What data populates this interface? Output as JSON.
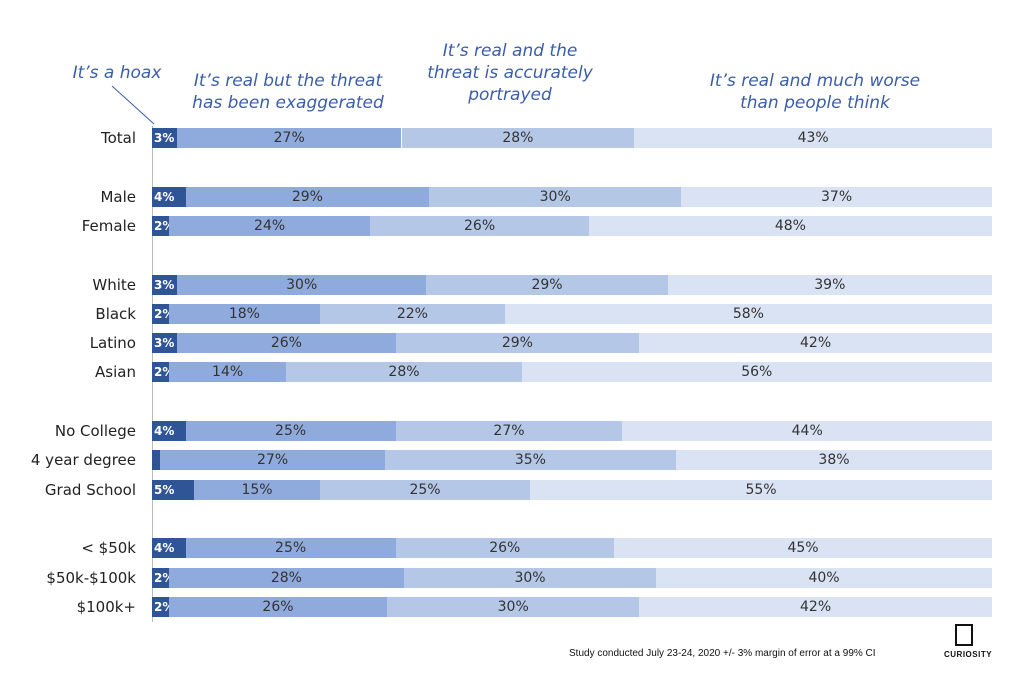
{
  "chart_data": {
    "type": "bar",
    "orientation": "horizontal",
    "stacked": true,
    "xlim": [
      0,
      100
    ],
    "series_names": [
      "It’s a hoax",
      "It’s real but the threat has been exaggerated",
      "It’s real and the threat is accurately portrayed",
      "It’s real and much worse than people think"
    ],
    "series_colors": [
      "#2f5597",
      "#8faadc",
      "#b4c7e7",
      "#dae3f3"
    ],
    "groups": [
      {
        "rows": [
          {
            "label": "Total",
            "values": [
              3,
              27,
              28,
              43
            ],
            "labels": [
              "3%",
              "27%",
              "28%",
              "43%"
            ]
          }
        ]
      },
      {
        "rows": [
          {
            "label": "Male",
            "values": [
              4,
              29,
              30,
              37
            ],
            "labels": [
              "4%",
              "29%",
              "30%",
              "37%"
            ]
          },
          {
            "label": "Female",
            "values": [
              2,
              24,
              26,
              48
            ],
            "labels": [
              "2%",
              "24%",
              "26%",
              "48%"
            ]
          }
        ]
      },
      {
        "rows": [
          {
            "label": "White",
            "values": [
              3,
              30,
              29,
              39
            ],
            "labels": [
              "3%",
              "30%",
              "29%",
              "39%"
            ]
          },
          {
            "label": "Black",
            "values": [
              2,
              18,
              22,
              58
            ],
            "labels": [
              "2%",
              "18%",
              "22%",
              "58%"
            ]
          },
          {
            "label": "Latino",
            "values": [
              3,
              26,
              29,
              42
            ],
            "labels": [
              "3%",
              "26%",
              "29%",
              "42%"
            ]
          },
          {
            "label": "Asian",
            "values": [
              2,
              14,
              28,
              56
            ],
            "labels": [
              "2%",
              "14%",
              "28%",
              "56%"
            ]
          }
        ]
      },
      {
        "rows": [
          {
            "label": "No College",
            "values": [
              4,
              25,
              27,
              44
            ],
            "labels": [
              "4%",
              "25%",
              "27%",
              "44%"
            ]
          },
          {
            "label": "4 year degree",
            "values": [
              1,
              27,
              35,
              38
            ],
            "labels": [
              "",
              "27%",
              "35%",
              "38%"
            ]
          },
          {
            "label": "Grad School",
            "values": [
              5,
              15,
              25,
              55
            ],
            "labels": [
              "5%",
              "15%",
              "25%",
              "55%"
            ]
          }
        ]
      },
      {
        "rows": [
          {
            "label": "< $50k",
            "values": [
              4,
              25,
              26,
              45
            ],
            "labels": [
              "4%",
              "25%",
              "26%",
              "45%"
            ]
          },
          {
            "label": "$50k-$100k",
            "values": [
              2,
              28,
              30,
              40
            ],
            "labels": [
              "2%",
              "28%",
              "30%",
              "40%"
            ]
          },
          {
            "label": "$100k+",
            "values": [
              2,
              26,
              30,
              42
            ],
            "labels": [
              "2%",
              "26%",
              "30%",
              "42%"
            ]
          }
        ]
      }
    ]
  },
  "headers": {
    "hoax": "It’s a hoax",
    "exaggerated_l1": "It’s real but the threat",
    "exaggerated_l2": "has been exaggerated",
    "accurate_l1": "It’s real and the",
    "accurate_l2": "threat is accurately",
    "accurate_l3": "portrayed",
    "worse_l1": "It’s real and much worse",
    "worse_l2": "than people think"
  },
  "footer": {
    "note": "Study conducted July 23-24, 2020   +/- 3% margin of error at a 99% CI",
    "logo_text": "CURIOSITY"
  }
}
